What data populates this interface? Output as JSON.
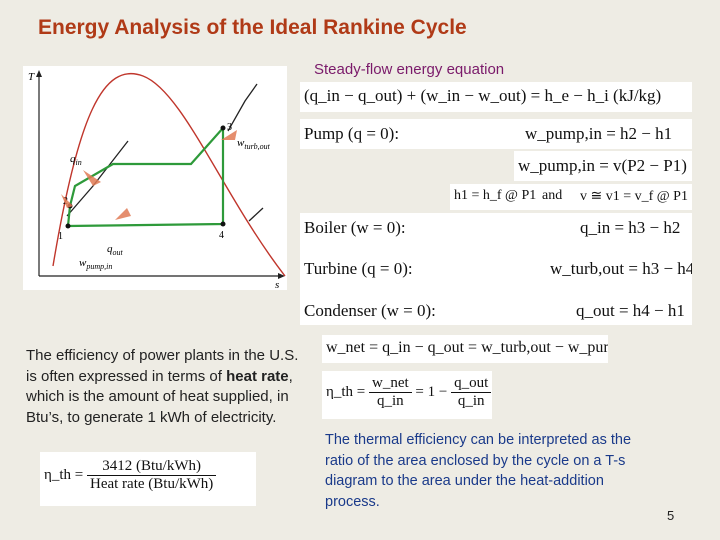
{
  "title": "Energy Analysis of the Ideal Rankine Cycle",
  "subtitle": "Steady-flow energy equation",
  "diagram": {
    "axis_y": "T",
    "axis_x": "s",
    "points": [
      "1",
      "2",
      "3",
      "4"
    ],
    "q_in": "q",
    "q_in_sub": "in",
    "q_out": "q",
    "q_out_sub": "out",
    "w_turb": "w",
    "w_turb_sub": "turb,out",
    "w_pump": "w",
    "w_pump_sub": "pump,in"
  },
  "equations": {
    "general": "(q_in − q_out) + (w_in − w_out) = h_e − h_i   (kJ/kg)",
    "pump_label": "Pump (q = 0):",
    "pump_eq": "w_pump,in = h2 − h1",
    "pump_eq2": "w_pump,in = v(P2 − P1)",
    "h1_eq": "h1 = h_f @ P1",
    "and": "and",
    "v_eq": "v ≅ v1 = v_f @ P1",
    "boiler_label": "Boiler (w = 0):",
    "boiler_eq": "q_in = h3 − h2",
    "turbine_label": "Turbine (q = 0):",
    "turbine_eq": "w_turb,out = h3 − h4",
    "condenser_label": "Condenser (w = 0):",
    "condenser_eq": "q_out = h4 − h1",
    "wnet": "w_net = q_in − q_out = w_turb,out − w_pump,in",
    "eta_lhs": "η_th = ",
    "eta_num1": "w_net",
    "eta_den1": "q_in",
    "eta_mid": " = 1 − ",
    "eta_num2": "q_out",
    "eta_den2": "q_in",
    "heat_rate_lhs": "η_th = ",
    "heat_rate_num": "3412 (Btu/kWh)",
    "heat_rate_den": "Heat rate (Btu/kWh)"
  },
  "text_left_1": "The efficiency of power plants in the U.S. is often expressed in terms of ",
  "text_left_bold": "heat rate",
  "text_left_2": ", which is the amount of heat supplied, in Btu’s, to generate 1 kWh of electricity.",
  "text_right": "The thermal efficiency can be interpreted as the ratio of the area enclosed by the cycle on a T-s diagram to the area under the heat-addition process.",
  "page_number": "5"
}
